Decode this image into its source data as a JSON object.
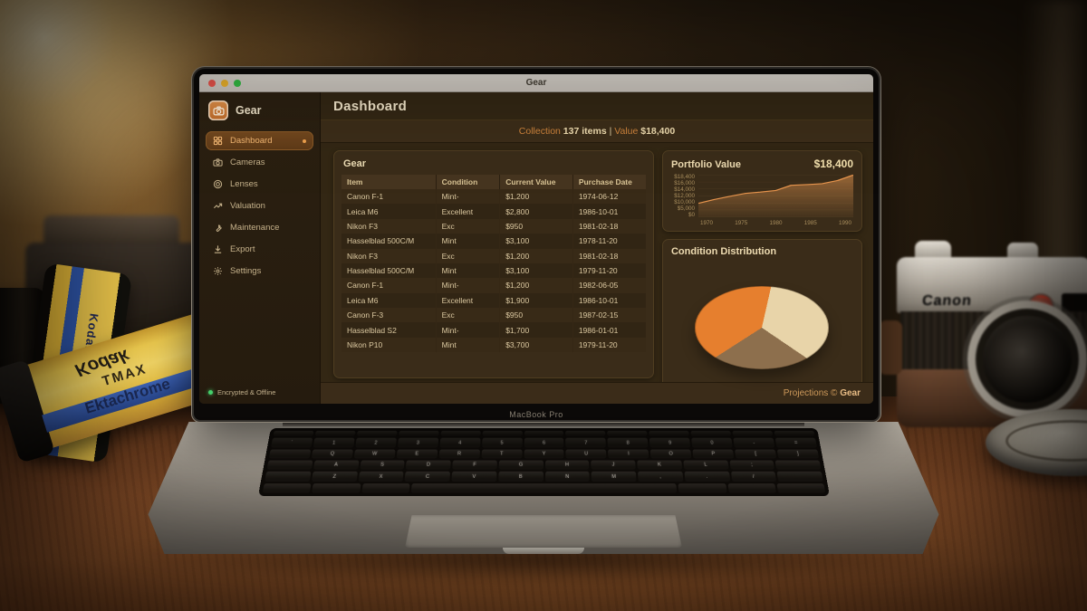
{
  "window": {
    "title": "Gear"
  },
  "scene": {
    "laptop_label": "MacBook Pro",
    "props": {
      "camera_brand": "Canon",
      "film_brand": "Kodak",
      "film_line1": "TMAX",
      "film_line2": "Ektachrome"
    }
  },
  "app": {
    "sidebar": {
      "logo": "Gear",
      "items": [
        {
          "label": "Dashboard",
          "icon": "dashboard",
          "active": true
        },
        {
          "label": "Cameras",
          "icon": "camera",
          "active": false
        },
        {
          "label": "Lenses",
          "icon": "lens",
          "active": false
        },
        {
          "label": "Valuation",
          "icon": "trend",
          "active": false
        },
        {
          "label": "Maintenance",
          "icon": "wrench",
          "active": false
        },
        {
          "label": "Export",
          "icon": "export",
          "active": false
        },
        {
          "label": "Settings",
          "icon": "settings",
          "active": false
        }
      ],
      "status": "Encrypted & Offline"
    },
    "header": {
      "title": "Dashboard"
    },
    "summary": {
      "collection_label": "Collection",
      "collection_count": "137 items",
      "divider": "|",
      "value_label": "Value",
      "value_amount": "$18,400"
    },
    "table": {
      "title": "Gear",
      "columns": [
        "Item",
        "Condition",
        "Current Value",
        "Purchase Date"
      ],
      "rows": [
        [
          "Canon F-1",
          "Mint-",
          "$1,200",
          "1974-06-12"
        ],
        [
          "Leica M6",
          "Excellent",
          "$2,800",
          "1986-10-01"
        ],
        [
          "Nikon F3",
          "Exc",
          "$950",
          "1981-02-18"
        ],
        [
          "Hasselblad 500C/M",
          "Mint",
          "$3,100",
          "1978-11-20"
        ],
        [
          "Nikon F3",
          "Exc",
          "$1,200",
          "1981-02-18"
        ],
        [
          "Hasselblad 500C/M",
          "Mint",
          "$3,100",
          "1979-11-20"
        ],
        [
          "Canon F-1",
          "Mint-",
          "$1,200",
          "1982-06-05"
        ],
        [
          "Leica M6",
          "Excellent",
          "$1,900",
          "1986-10-01"
        ],
        [
          "Canon F-3",
          "Exc",
          "$950",
          "1987-02-15"
        ],
        [
          "Hasselblad S2",
          "Mint-",
          "$1,700",
          "1986-01-01"
        ],
        [
          "Nikon P10",
          "Mint",
          "$3,700",
          "1979-11-20"
        ]
      ]
    },
    "footer": {
      "credit_prefix": "Projections © ",
      "credit_brand": "Gear"
    }
  },
  "chart_data": [
    {
      "type": "area",
      "title": "Portfolio Value",
      "current_total": "$18,400",
      "x": [
        1970,
        1972,
        1974,
        1976,
        1978,
        1980,
        1982,
        1984,
        1986,
        1988,
        1990
      ],
      "values": [
        6000,
        7600,
        9000,
        10300,
        10900,
        11600,
        13900,
        14200,
        14600,
        16000,
        18400
      ],
      "ylim": [
        0,
        18400
      ],
      "y_ticks": [
        "$18,400",
        "$16,000",
        "$14,000",
        "$12,000",
        "$10,000",
        "$5,000",
        "$0"
      ],
      "x_ticks": [
        "1970",
        "1975",
        "1980",
        "1985",
        "1990"
      ],
      "line_color": "#e6944d",
      "fill_top": "rgba(226,149,80,0.55)",
      "fill_bottom": "rgba(226,149,80,0.06)",
      "grid": true,
      "grid_color": "#4d3b22",
      "legend_position": "none"
    },
    {
      "type": "pie",
      "title": "Condition Distribution",
      "start_angle_deg": 8,
      "segments": [
        {
          "name": "slice-cream",
          "value": 36,
          "color": "#e8d4a9"
        },
        {
          "name": "slice-brown",
          "value": 24,
          "color": "#8d6f4d"
        },
        {
          "name": "slice-orange",
          "value": 40,
          "color": "#e67f2e"
        }
      ],
      "legend_position": "none"
    }
  ],
  "keyboard": {
    "rows": [
      [
        "",
        "",
        "",
        "",
        "",
        "",
        "",
        "",
        "",
        "",
        "",
        "",
        ""
      ],
      [
        "`",
        "1",
        "2",
        "3",
        "4",
        "5",
        "6",
        "7",
        "8",
        "9",
        "0",
        "-",
        "="
      ],
      [
        "",
        "Q",
        "W",
        "E",
        "R",
        "T",
        "Y",
        "U",
        "I",
        "O",
        "P",
        "[",
        "]"
      ],
      [
        "",
        "A",
        "S",
        "D",
        "F",
        "G",
        "H",
        "J",
        "K",
        "L",
        ";",
        ""
      ],
      [
        "",
        "Z",
        "X",
        "C",
        "V",
        "B",
        "N",
        "M",
        ",",
        ".",
        "/",
        ""
      ],
      [
        "",
        "",
        "",
        "space",
        "",
        "",
        ""
      ]
    ]
  }
}
